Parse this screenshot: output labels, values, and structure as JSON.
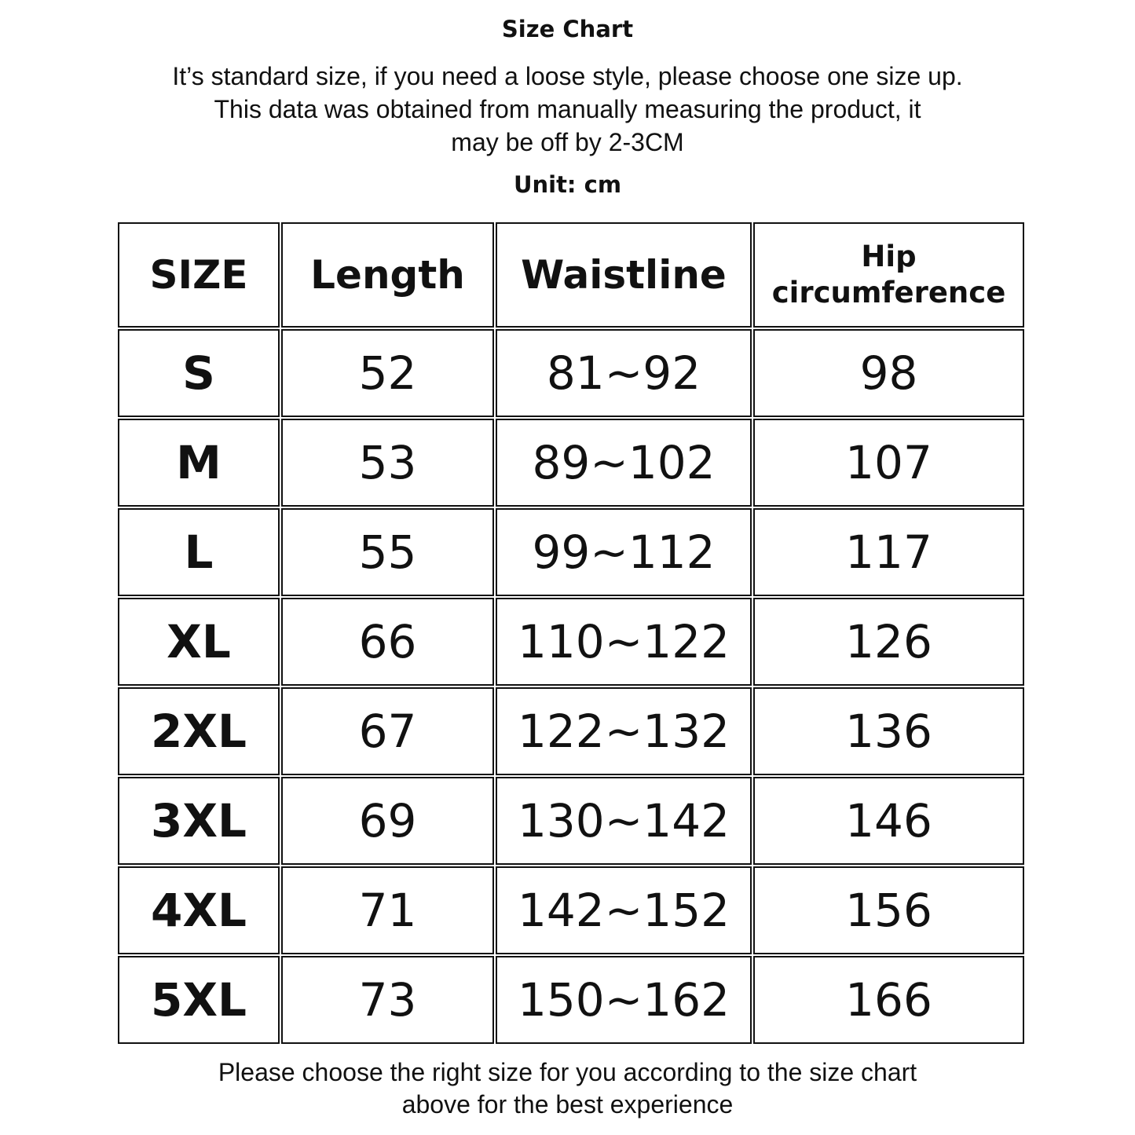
{
  "title": "Size Chart",
  "description": [
    "It’s standard size, if you need a loose style, please choose one size up.",
    "This data was obtained from manually measuring the product, it",
    "may be off by 2-3CM"
  ],
  "unit": "Unit: cm",
  "table": {
    "headers": [
      "SIZE",
      "Length",
      "Waistline",
      "Hip circumference"
    ],
    "rows": [
      [
        "S",
        "52",
        "81~92",
        "98"
      ],
      [
        "M",
        "53",
        "89~102",
        "107"
      ],
      [
        "L",
        "55",
        "99~112",
        "117"
      ],
      [
        "XL",
        "66",
        "110~122",
        "126"
      ],
      [
        "2XL",
        "67",
        "122~132",
        "136"
      ],
      [
        "3XL",
        "69",
        "130~142",
        "146"
      ],
      [
        "4XL",
        "71",
        "142~152",
        "156"
      ],
      [
        "5XL",
        "73",
        "150~162",
        "166"
      ]
    ]
  },
  "footer": [
    "Please choose the right size for you according to the size chart",
    "above for the best experience"
  ]
}
